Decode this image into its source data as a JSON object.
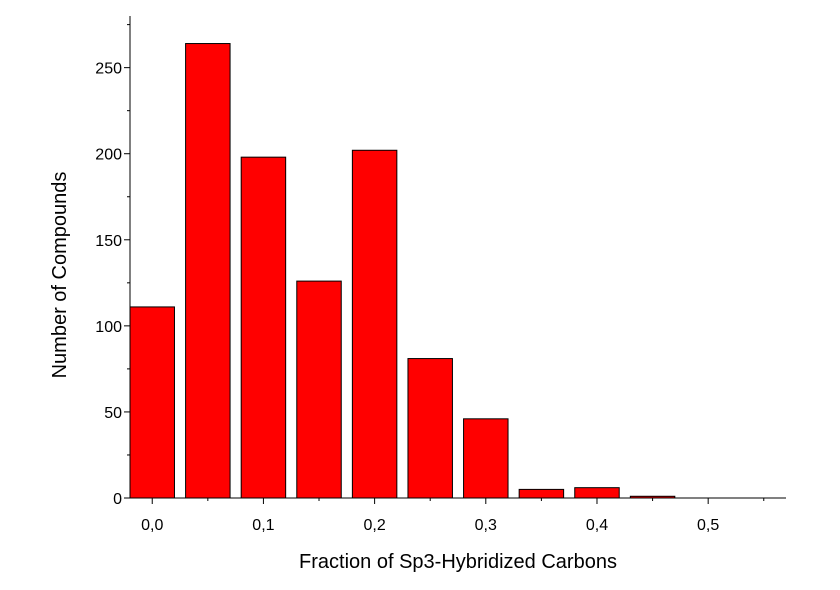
{
  "chart_data": {
    "type": "bar",
    "title": "",
    "xlabel": "Fraction of Sp3-Hybridized Carbons",
    "ylabel": "Number of Compounds",
    "x": [
      0.0,
      0.05,
      0.1,
      0.15,
      0.2,
      0.25,
      0.3,
      0.35,
      0.4,
      0.45,
      0.5,
      0.55
    ],
    "values": [
      111,
      264,
      198,
      126,
      202,
      81,
      46,
      5,
      6,
      1,
      0,
      0
    ],
    "bar_width": 0.04,
    "xlim": [
      -0.02,
      0.57
    ],
    "ylim": [
      0,
      280
    ],
    "xticks": [
      0.0,
      0.1,
      0.2,
      0.3,
      0.4,
      0.5
    ],
    "xtick_labels": [
      "0,0",
      "0,1",
      "0,2",
      "0,3",
      "0,4",
      "0,5"
    ],
    "yticks": [
      0,
      50,
      100,
      150,
      200,
      250
    ],
    "ytick_labels": [
      "0",
      "50",
      "100",
      "150",
      "200",
      "250"
    ],
    "bar_color": "#ff0000",
    "grid": false,
    "legend": "none"
  }
}
